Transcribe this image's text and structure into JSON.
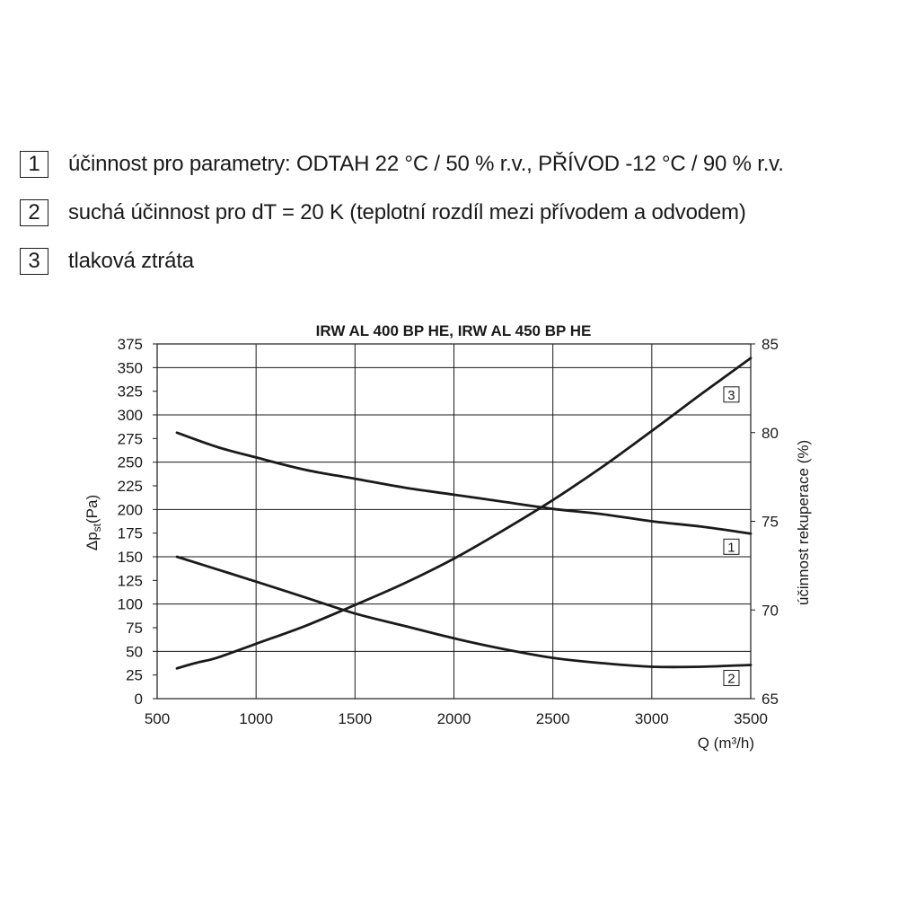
{
  "legend": [
    {
      "num": "1",
      "text": "účinnost pro parametry: ODTAH 22 °C / 50 % r.v., PŘÍVOD -12 °C / 90 % r.v."
    },
    {
      "num": "2",
      "text": "suchá účinnost pro dT = 20 K (teplotní rozdíl mezi přívodem a odvodem)"
    },
    {
      "num": "3",
      "text": "tlaková ztráta"
    }
  ],
  "chart_data": {
    "type": "line",
    "title": "IRW AL 400 BP HE, IRW AL 450 BP HE",
    "xlabel": "Q (m³/h)",
    "ylabel": "Δpst(Pa)",
    "ylabel_main": "Δp",
    "ylabel_sub": "st",
    "ylabel_unit": "(Pa)",
    "y2label": "účinnost rekuperace (%)",
    "xlim": [
      500,
      3500
    ],
    "xticks": [
      "500",
      "1000",
      "1500",
      "2000",
      "2500",
      "3000",
      "3500"
    ],
    "ylim": [
      0,
      375
    ],
    "yticks": [
      "0",
      "25",
      "50",
      "75",
      "100",
      "125",
      "150",
      "175",
      "200",
      "225",
      "250",
      "275",
      "300",
      "325",
      "350",
      "375"
    ],
    "y2lim": [
      65,
      85
    ],
    "y2ticks": [
      "65",
      "70",
      "75",
      "80",
      "85"
    ],
    "grid": true,
    "series": [
      {
        "name": "1",
        "axis": "right",
        "x": [
          600,
          800,
          1000,
          1250,
          1500,
          1750,
          2000,
          2250,
          2500,
          2750,
          3000,
          3250,
          3500
        ],
        "y": [
          80.0,
          79.2,
          78.6,
          77.9,
          77.4,
          76.9,
          76.5,
          76.1,
          75.7,
          75.4,
          75.0,
          74.7,
          74.3
        ]
      },
      {
        "name": "2",
        "axis": "right",
        "x": [
          600,
          800,
          1000,
          1250,
          1500,
          1750,
          2000,
          2250,
          2500,
          2750,
          3000,
          3250,
          3500
        ],
        "y": [
          73.0,
          72.3,
          71.6,
          70.7,
          69.8,
          69.1,
          68.4,
          67.8,
          67.3,
          67.0,
          66.8,
          66.8,
          66.9
        ]
      },
      {
        "name": "3",
        "axis": "left",
        "x": [
          600,
          700,
          800,
          1000,
          1250,
          1500,
          1750,
          2000,
          2250,
          2500,
          2750,
          3000,
          3250,
          3500
        ],
        "y": [
          32,
          38,
          43,
          58,
          77,
          99,
          122,
          148,
          178,
          210,
          245,
          283,
          322,
          360
        ]
      }
    ]
  }
}
